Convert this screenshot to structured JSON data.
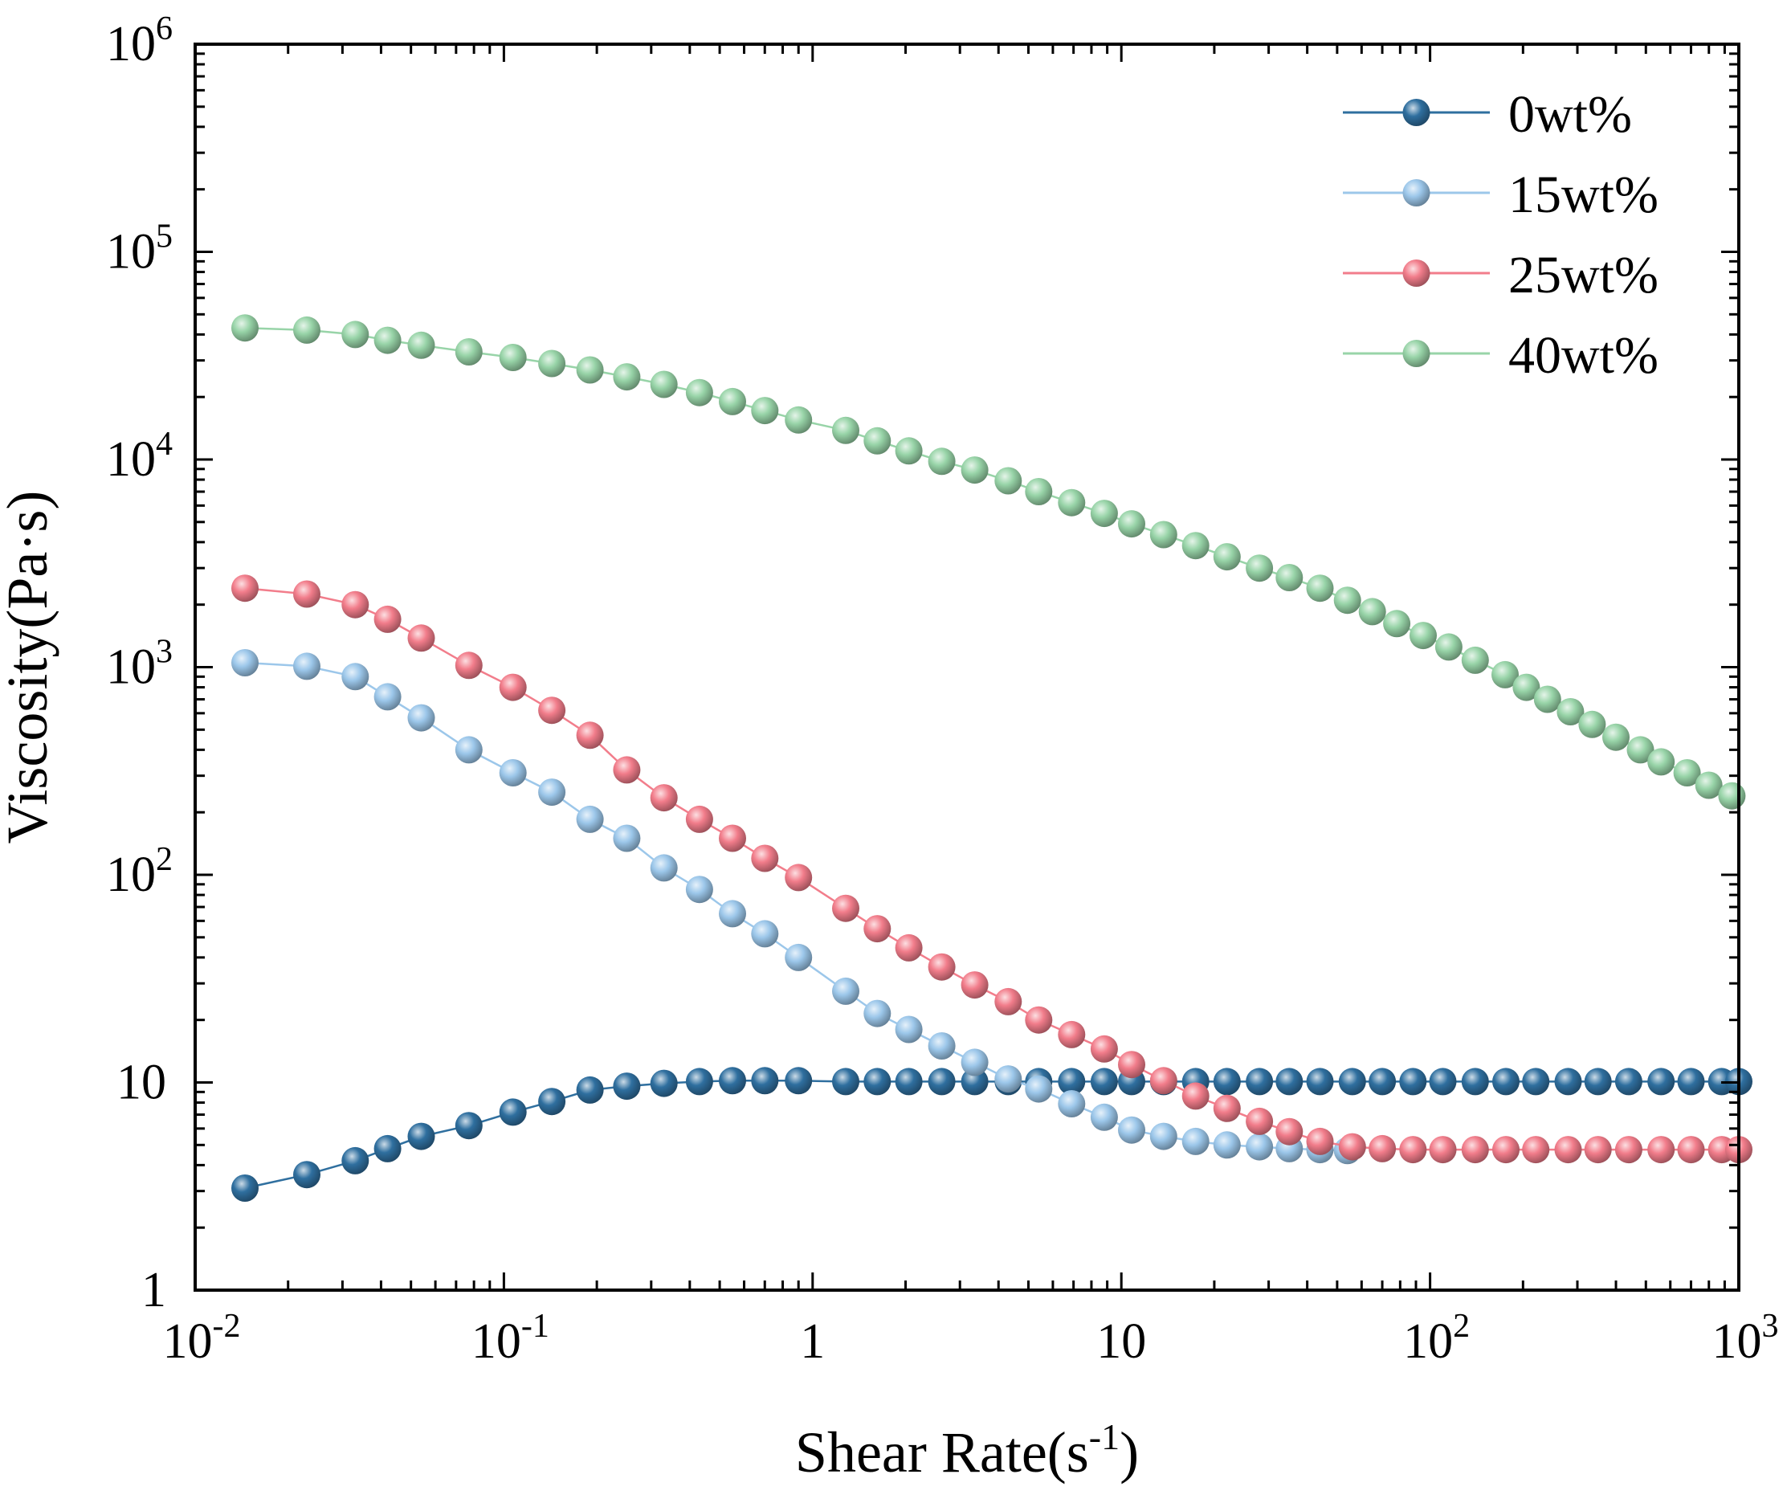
{
  "chart_data": {
    "type": "line",
    "title": "",
    "xlabel": {
      "base": "Shear Rate(s",
      "sup": "-1",
      "tail": ")"
    },
    "ylabel": "Viscosity(Pa·s)",
    "xscale": "log",
    "yscale": "log",
    "xlim": [
      0.01,
      1000
    ],
    "ylim": [
      1,
      1000000
    ],
    "grid": false,
    "legend_position": "top-right",
    "x_ticks": [
      {
        "value": 0.01,
        "base": "10",
        "exp": "-2"
      },
      {
        "value": 0.1,
        "base": "10",
        "exp": "-1"
      },
      {
        "value": 1,
        "base": "1",
        "exp": ""
      },
      {
        "value": 10,
        "base": "10",
        "exp": ""
      },
      {
        "value": 100,
        "base": "10",
        "exp": "2"
      },
      {
        "value": 1000,
        "base": "10",
        "exp": "3"
      }
    ],
    "y_ticks": [
      {
        "value": 1,
        "base": "1",
        "exp": ""
      },
      {
        "value": 10,
        "base": "10",
        "exp": ""
      },
      {
        "value": 100,
        "base": "10",
        "exp": "2"
      },
      {
        "value": 1000,
        "base": "10",
        "exp": "3"
      },
      {
        "value": 10000,
        "base": "10",
        "exp": "4"
      },
      {
        "value": 100000,
        "base": "10",
        "exp": "5"
      },
      {
        "value": 1000000,
        "base": "10",
        "exp": "6"
      }
    ],
    "series": [
      {
        "name": "0wt%",
        "color": "#2f6f9f",
        "x": [
          0.0145,
          0.023,
          0.033,
          0.042,
          0.054,
          0.077,
          0.107,
          0.143,
          0.19,
          0.25,
          0.33,
          0.43,
          0.55,
          0.7,
          0.9,
          1.28,
          1.62,
          2.05,
          2.62,
          3.35,
          4.3,
          5.4,
          6.9,
          8.8,
          10.8,
          13.7,
          17.4,
          22,
          28,
          35,
          44,
          56,
          70,
          88,
          110,
          140,
          176,
          220,
          280,
          350,
          440,
          560,
          700,
          880,
          1000
        ],
        "y": [
          3.1,
          3.6,
          4.2,
          4.8,
          5.5,
          6.2,
          7.2,
          8.1,
          9.2,
          9.6,
          9.9,
          10.1,
          10.2,
          10.2,
          10.2,
          10.1,
          10.1,
          10.1,
          10.1,
          10.1,
          10.1,
          10.1,
          10.1,
          10.1,
          10.1,
          10.1,
          10.1,
          10.1,
          10.1,
          10.1,
          10.1,
          10.1,
          10.1,
          10.1,
          10.1,
          10.1,
          10.1,
          10.1,
          10.1,
          10.1,
          10.1,
          10.1,
          10.1,
          10.1,
          10.1
        ]
      },
      {
        "name": "15wt%",
        "color": "#9cc7ea",
        "x": [
          0.0145,
          0.023,
          0.033,
          0.042,
          0.054,
          0.077,
          0.107,
          0.143,
          0.19,
          0.25,
          0.33,
          0.43,
          0.55,
          0.7,
          0.9,
          1.28,
          1.62,
          2.05,
          2.62,
          3.35,
          4.3,
          5.4,
          6.9,
          8.8,
          10.8,
          13.7,
          17.4,
          22,
          28,
          35,
          44,
          54
        ],
        "y": [
          1050,
          1010,
          900,
          720,
          570,
          400,
          310,
          250,
          185,
          150,
          108,
          85,
          65,
          52,
          40,
          27.5,
          21.5,
          18,
          15,
          12.5,
          10.4,
          9.3,
          7.9,
          6.8,
          5.9,
          5.5,
          5.2,
          5.0,
          4.9,
          4.8,
          4.75,
          4.7
        ]
      },
      {
        "name": "25wt%",
        "color": "#f27d8b",
        "x": [
          0.0145,
          0.023,
          0.033,
          0.042,
          0.054,
          0.077,
          0.107,
          0.143,
          0.19,
          0.25,
          0.33,
          0.43,
          0.55,
          0.7,
          0.9,
          1.28,
          1.62,
          2.05,
          2.62,
          3.35,
          4.3,
          5.4,
          6.9,
          8.8,
          10.8,
          13.7,
          17.4,
          22,
          28,
          35,
          44,
          56,
          70,
          88,
          110,
          140,
          176,
          220,
          280,
          350,
          440,
          560,
          700,
          880,
          1000
        ],
        "y": [
          2400,
          2250,
          2000,
          1700,
          1380,
          1020,
          800,
          620,
          470,
          320,
          235,
          185,
          150,
          120,
          97,
          69,
          55,
          44.5,
          36,
          29.5,
          24.5,
          20,
          17,
          14.5,
          12.2,
          10.2,
          8.6,
          7.5,
          6.5,
          5.8,
          5.2,
          4.9,
          4.8,
          4.75,
          4.75,
          4.75,
          4.75,
          4.75,
          4.75,
          4.75,
          4.75,
          4.75,
          4.75,
          4.75,
          4.75
        ]
      },
      {
        "name": "40wt%",
        "color": "#98d4a8",
        "x": [
          0.0145,
          0.023,
          0.033,
          0.042,
          0.054,
          0.077,
          0.107,
          0.143,
          0.19,
          0.25,
          0.33,
          0.43,
          0.55,
          0.7,
          0.9,
          1.28,
          1.62,
          2.05,
          2.62,
          3.35,
          4.3,
          5.4,
          6.9,
          8.8,
          10.8,
          13.7,
          17.4,
          22,
          28,
          35,
          44,
          54,
          65,
          78,
          95,
          115,
          140,
          175,
          205,
          240,
          285,
          335,
          400,
          480,
          560,
          680,
          800,
          950
        ],
        "y": [
          43000,
          42000,
          40000,
          37500,
          35500,
          33000,
          31000,
          29000,
          27000,
          25000,
          23000,
          21000,
          19000,
          17200,
          15500,
          13800,
          12300,
          11000,
          9800,
          8900,
          7900,
          7000,
          6200,
          5500,
          4900,
          4350,
          3850,
          3400,
          3000,
          2700,
          2400,
          2100,
          1850,
          1620,
          1420,
          1250,
          1080,
          920,
          800,
          700,
          610,
          530,
          460,
          400,
          350,
          310,
          270,
          240
        ]
      }
    ]
  }
}
